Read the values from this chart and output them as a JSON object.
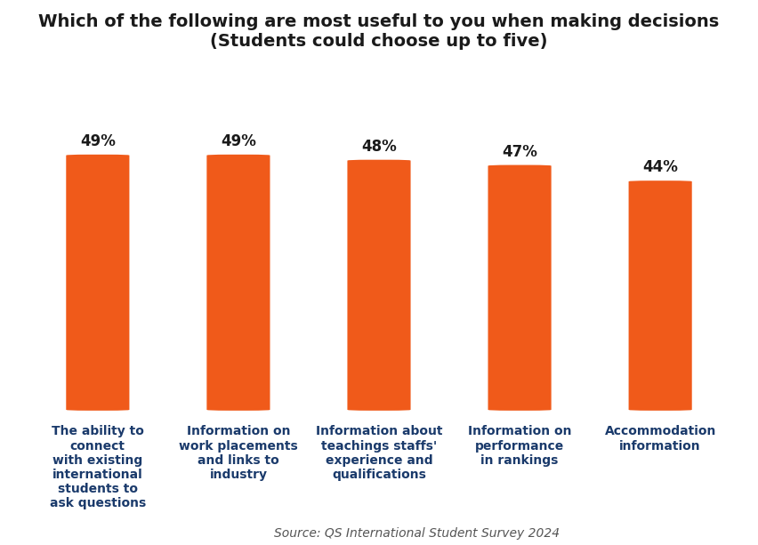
{
  "title_line1": "Which of the following are most useful to you when making decisions",
  "title_line2": "(Students could choose up to five)",
  "categories": [
    "The ability to\nconnect\nwith existing\ninternational\nstudents to\nask questions",
    "Information on\nwork placements\nand links to\nindustry",
    "Information about\nteachings staffs'\nexperience and\nqualifications",
    "Information on\nperformance\nin rankings",
    "Accommodation\ninformation"
  ],
  "values": [
    49,
    49,
    48,
    47,
    44
  ],
  "bar_color": "#F05A1A",
  "value_labels": [
    "49%",
    "49%",
    "48%",
    "47%",
    "44%"
  ],
  "source_text": "Source: QS International Student Survey 2024",
  "ylim": [
    0,
    65
  ],
  "background_color": "#ffffff",
  "title_fontsize": 14,
  "label_fontsize": 12,
  "tick_fontsize": 10,
  "source_fontsize": 10,
  "tick_color": "#1a3a6b",
  "value_color": "#1a1a1a"
}
